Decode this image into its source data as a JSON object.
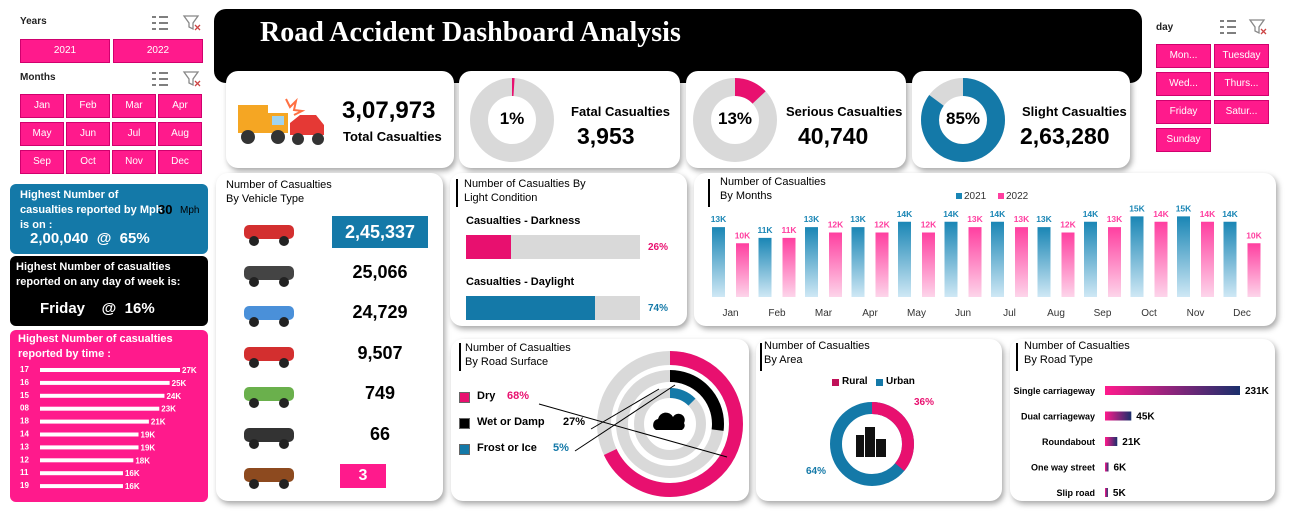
{
  "title": "Road Accident Dashboard Analysis",
  "slicers": {
    "years": {
      "header": "Years",
      "items": [
        "2021",
        "2022"
      ]
    },
    "months": {
      "header": "Months",
      "items": [
        "Jan",
        "Feb",
        "Mar",
        "Apr",
        "May",
        "Jun",
        "Jul",
        "Aug",
        "Sep",
        "Oct",
        "Nov",
        "Dec"
      ]
    },
    "day": {
      "header": "day",
      "items": [
        "Mon...",
        "Tuesday",
        "Wed...",
        "Thurs...",
        "Friday",
        "Satur...",
        "Sunday"
      ]
    }
  },
  "info": {
    "mph_title": "Highest Number of casualties reported by Mph is on :",
    "mph_value": "30",
    "mph_unit": "Mph",
    "mph_stats": "2,00,040  @  65%",
    "day_title": "Highest Number of casualties reported on any day of week is:",
    "day_stats": "Friday    @  16%",
    "time_title": "Highest Number of casualties reported by time :",
    "time_rows": [
      {
        "hour": "17",
        "label": "27K",
        "value": 27
      },
      {
        "hour": "16",
        "label": "25K",
        "value": 25
      },
      {
        "hour": "15",
        "label": "24K",
        "value": 24
      },
      {
        "hour": "08",
        "label": "23K",
        "value": 23
      },
      {
        "hour": "18",
        "label": "21K",
        "value": 21
      },
      {
        "hour": "14",
        "label": "19K",
        "value": 19
      },
      {
        "hour": "13",
        "label": "19K",
        "value": 19
      },
      {
        "hour": "12",
        "label": "18K",
        "value": 18
      },
      {
        "hour": "11",
        "label": "16K",
        "value": 16
      },
      {
        "hour": "19",
        "label": "16K",
        "value": 16
      }
    ]
  },
  "kpis": {
    "total": {
      "value": "3,07,973",
      "label": "Total Casualties"
    },
    "fatal": {
      "pct": "1%",
      "pct_value": 1,
      "label": "Fatal Casualties",
      "value": "3,953"
    },
    "serious": {
      "pct": "13%",
      "pct_value": 13,
      "label": "Serious Casualties",
      "value": "40,740"
    },
    "slight": {
      "pct": "85%",
      "pct_value": 85,
      "label": "Slight Casualties",
      "value": "2,63,280"
    }
  },
  "vehicle": {
    "title1": "Number of Casualties",
    "title2": "By Vehicle Type",
    "rows": [
      {
        "icon": "car-icon",
        "value": "2,45,337"
      },
      {
        "icon": "motorcycle-icon",
        "value": "25,066"
      },
      {
        "icon": "van-icon",
        "value": "24,729"
      },
      {
        "icon": "bus-icon",
        "value": "9,507"
      },
      {
        "icon": "tractor-icon",
        "value": "749"
      },
      {
        "icon": "bicycle-icon",
        "value": "66"
      },
      {
        "icon": "horse-icon",
        "value": "3"
      }
    ]
  },
  "light": {
    "title1": "Number of  Casualties By",
    "title2": "Light Condition",
    "rows": [
      {
        "label": "Casualties - Darkness",
        "pct": "26%",
        "value": 26,
        "color": "#e8106f"
      },
      {
        "label": "Casualties - Daylight",
        "pct": "74%",
        "value": 74,
        "color": "#1479a8"
      }
    ]
  },
  "months_chart": {
    "title1": "Number of Casualties",
    "title2": "By Months",
    "legend": [
      "2021",
      "2022"
    ],
    "colors": {
      "2021": "#1a86b5",
      "2022": "#ff3fa0"
    }
  },
  "chart_data": [
    {
      "type": "bar",
      "title": "Number of Casualties By Months",
      "categories": [
        "Jan",
        "Feb",
        "Mar",
        "Apr",
        "May",
        "Jun",
        "Jul",
        "Aug",
        "Sep",
        "Oct",
        "Nov",
        "Dec"
      ],
      "series": [
        {
          "name": "2021",
          "values": [
            13,
            11,
            13,
            13,
            14,
            14,
            14,
            13,
            14,
            15,
            15,
            14
          ],
          "labels": [
            "13K",
            "11K",
            "13K",
            "13K",
            "14K",
            "14K",
            "14K",
            "13K",
            "14K",
            "15K",
            "15K",
            "14K"
          ]
        },
        {
          "name": "2022",
          "values": [
            10,
            11,
            12,
            12,
            12,
            13,
            13,
            12,
            13,
            14,
            14,
            10
          ],
          "labels": [
            "10K",
            "11K",
            "12K",
            "12K",
            "12K",
            "13K",
            "13K",
            "12K",
            "13K",
            "14K",
            "14K",
            "10K"
          ]
        }
      ]
    },
    {
      "type": "pie",
      "title": "Number of Casualties By Road Surface",
      "categories": [
        "Dry",
        "Wet or Damp",
        "Frost or Ice"
      ],
      "values": [
        68,
        27,
        5
      ],
      "labels": [
        "68%",
        "27%",
        "5%"
      ],
      "colors": [
        "#e8106f",
        "#000000",
        "#1479a8"
      ]
    },
    {
      "type": "pie",
      "title": "Number of Casualties By Area",
      "categories": [
        "Rural",
        "Urban"
      ],
      "values": [
        36,
        64
      ],
      "labels": [
        "36%",
        "64%"
      ],
      "colors": [
        "#e8106f",
        "#1479a8"
      ]
    },
    {
      "type": "bar",
      "title": "Number of Casualties By Road Type",
      "categories": [
        "Single carriageway",
        "Dual carriageway",
        "Roundabout",
        "One way street",
        "Slip road"
      ],
      "values": [
        231,
        45,
        21,
        6,
        5
      ],
      "labels": [
        "231K",
        "45K",
        "21K",
        "6K",
        "5K"
      ]
    }
  ],
  "surface": {
    "title1": "Number of Casualties",
    "title2": "By Road Surface",
    "legend": [
      {
        "label": "Dry",
        "pct": "68%",
        "color": "#e8106f"
      },
      {
        "label": "Wet or Damp",
        "pct": "27%",
        "color": "#000000"
      },
      {
        "label": "Frost or Ice",
        "pct": "5%",
        "color": "#1479a8"
      }
    ]
  },
  "area": {
    "title1": "Number of Casualties",
    "title2": "By Area",
    "legend": [
      {
        "label": "Rural",
        "color": "#c01058"
      },
      {
        "label": "Urban",
        "color": "#1479a8"
      }
    ],
    "rural_pct": "36%",
    "urban_pct": "64%"
  },
  "road_type": {
    "title1": "Number of Casualties",
    "title2": "By Road Type"
  }
}
